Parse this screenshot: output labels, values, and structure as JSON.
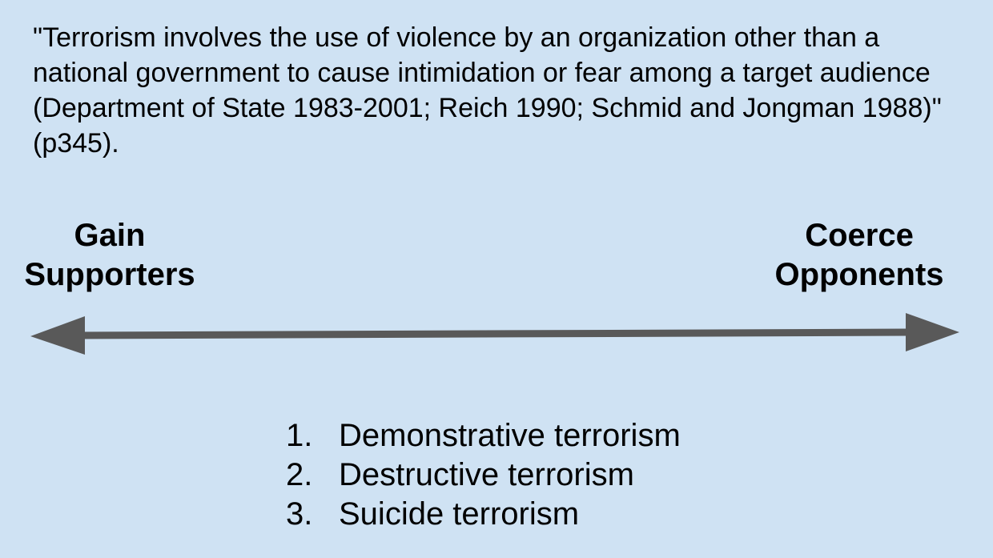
{
  "quote": "\"Terrorism involves the use of violence by an organization other than a national government to cause intimidation or fear among a target audience (Department of State 1983-2001; Reich 1990; Schmid and Jongman 1988)\" (p345).",
  "spectrum": {
    "left_label": [
      "Gain",
      "Supporters"
    ],
    "right_label": [
      "Coerce",
      "Opponents"
    ],
    "arrow_color": "#595959",
    "background": "#cfe2f3"
  },
  "types": [
    {
      "number": "1.",
      "label": "Demonstrative terrorism"
    },
    {
      "number": "2.",
      "label": "Destructive terrorism"
    },
    {
      "number": "3.",
      "label": "Suicide terrorism"
    }
  ]
}
